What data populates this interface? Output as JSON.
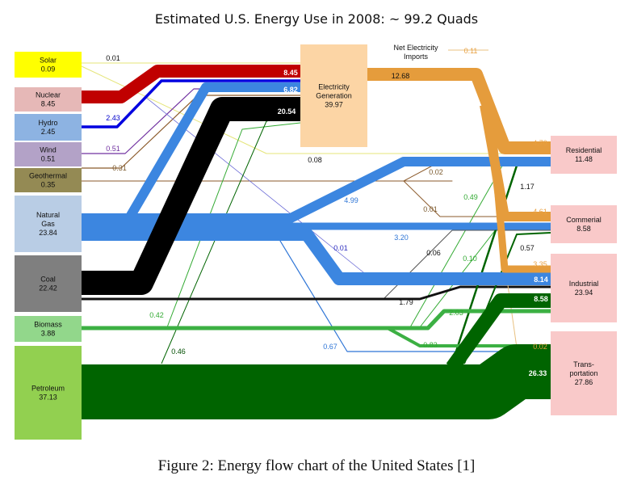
{
  "title": "Estimated U.S. Energy Use in 2008: ~ 99.2 Quads",
  "caption": "Figure 2: Energy flow chart of the United States [1]",
  "sources": [
    {
      "id": "solar",
      "name": "Solar",
      "value": "0.09",
      "color": "#ffff00"
    },
    {
      "id": "nuclear",
      "name": "Nuclear",
      "value": "8.45",
      "color": "#e6b8b7"
    },
    {
      "id": "hydro",
      "name": "Hydro",
      "value": "2.45",
      "color": "#8db3e2"
    },
    {
      "id": "wind",
      "name": "Wind",
      "value": "0.51",
      "color": "#b3a2c7"
    },
    {
      "id": "geothermal",
      "name": "Geothermal",
      "value": "0.35",
      "color": "#948a54"
    },
    {
      "id": "natural-gas",
      "name": "Natural\nGas",
      "value": "23.84",
      "color": "#b9cde5"
    },
    {
      "id": "coal",
      "name": "Coal",
      "value": "22.42",
      "color": "#7f7f7f"
    },
    {
      "id": "biomass",
      "name": "Biomass",
      "value": "3.88",
      "color": "#92d78b"
    },
    {
      "id": "petroleum",
      "name": "Petroleum",
      "value": "37.13",
      "color": "#92d050"
    }
  ],
  "electricity_generation": {
    "name": "Electricity\nGeneration",
    "value": "39.97",
    "color": "#fcd5a5"
  },
  "net_imports": {
    "name": "Net Electricity\nImports",
    "value": "0.11"
  },
  "sectors": [
    {
      "id": "residential",
      "name": "Residential",
      "value": "11.48",
      "color": "#f9c9c9"
    },
    {
      "id": "commercial",
      "name": "Commerial",
      "value": "8.58",
      "color": "#f9c9c9"
    },
    {
      "id": "industrial",
      "name": "Industrial",
      "value": "23.94",
      "color": "#f9c9c9"
    },
    {
      "id": "transportation",
      "name": "Trans-\nportation",
      "value": "27.86",
      "color": "#f9c9c9"
    }
  ],
  "flow_labels": [
    {
      "id": "solar-elec",
      "text": "0.01",
      "color": "#111111"
    },
    {
      "id": "nuclear-elec",
      "text": "8.45",
      "color": "#ffffff"
    },
    {
      "id": "hydro-elec",
      "text": "2.43",
      "color": "#0000cc"
    },
    {
      "id": "gas-elec",
      "text": "6.82",
      "color": "#ffffff"
    },
    {
      "id": "coal-elec",
      "text": "20.54",
      "color": "#ffffff"
    },
    {
      "id": "wind-elec",
      "text": "0.51",
      "color": "#7030a0"
    },
    {
      "id": "geo-elec",
      "text": "0.31",
      "color": "#7b5a2e"
    },
    {
      "id": "elec-out",
      "text": "12.68",
      "color": "#111111"
    },
    {
      "id": "solar-res",
      "text": "0.08",
      "color": "#111111"
    },
    {
      "id": "geo-res",
      "text": "0.02",
      "color": "#7b5a2e"
    },
    {
      "id": "geo-com",
      "text": "0.01",
      "color": "#7b5a2e"
    },
    {
      "id": "gas-res",
      "text": "4.99",
      "color": "#2e75d6"
    },
    {
      "id": "gas-com",
      "text": "3.20",
      "color": "#2e75d6"
    },
    {
      "id": "hydro-ind",
      "text": "0.01",
      "color": "#3030c0"
    },
    {
      "id": "coal-com",
      "text": "0.06",
      "color": "#111111"
    },
    {
      "id": "coal-ind",
      "text": "1.79",
      "color": "#111111"
    },
    {
      "id": "bio-res",
      "text": "0.49",
      "color": "#33aa33"
    },
    {
      "id": "bio-com",
      "text": "0.10",
      "color": "#33aa33"
    },
    {
      "id": "bio-elec",
      "text": "0.42",
      "color": "#33aa33"
    },
    {
      "id": "bio-ind",
      "text": "2.03",
      "color": "#33aa33"
    },
    {
      "id": "bio-trans",
      "text": "0.83",
      "color": "#33aa33"
    },
    {
      "id": "gas-trans",
      "text": "0.67",
      "color": "#2e75d6"
    },
    {
      "id": "pet-elec",
      "text": "0.46",
      "color": "#004d00"
    },
    {
      "id": "pet-res",
      "text": "1.17",
      "color": "#111111"
    },
    {
      "id": "pet-com",
      "text": "0.57",
      "color": "#111111"
    },
    {
      "id": "elec-res",
      "text": "4.70",
      "color": "#e8a040"
    },
    {
      "id": "elec-com",
      "text": "4.61",
      "color": "#e8a040"
    },
    {
      "id": "elec-ind",
      "text": "3.35",
      "color": "#e8a040"
    },
    {
      "id": "elec-trans",
      "text": "0.02",
      "color": "#e8a040"
    },
    {
      "id": "gas-ind",
      "text": "8.14",
      "color": "#ffffff"
    },
    {
      "id": "pet-ind",
      "text": "8.58",
      "color": "#ffffff"
    },
    {
      "id": "pet-trans",
      "text": "26.33",
      "color": "#ffffff"
    }
  ]
}
